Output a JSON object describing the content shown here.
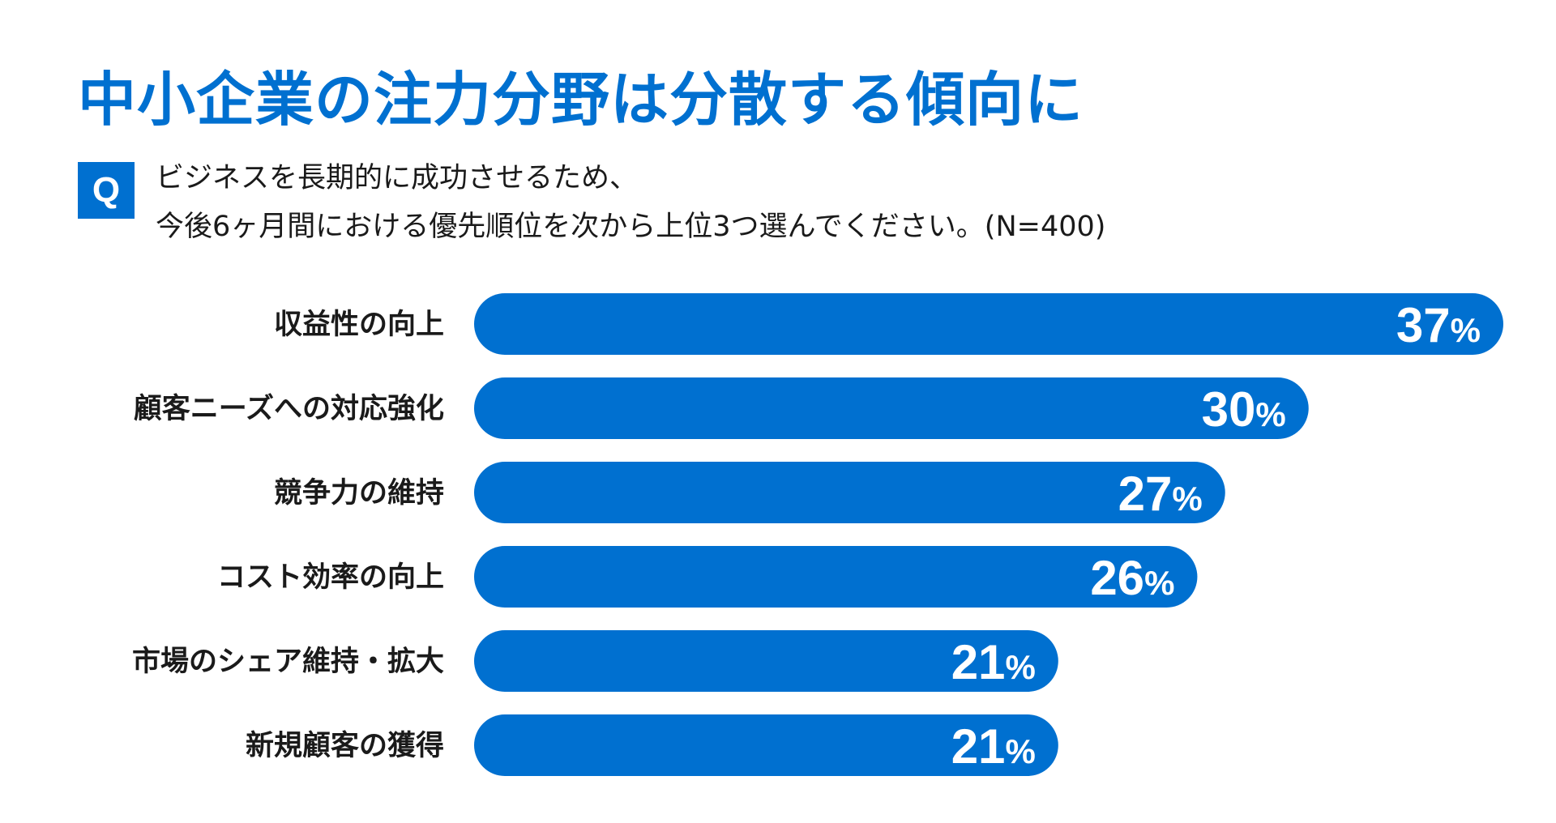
{
  "title": "中小企業の注力分野は分散する傾向に",
  "question": {
    "badge": "Q",
    "line1": "ビジネスを長期的に成功させるため、",
    "line2": "今後6ヶ月間における優先順位を次から上位3つ選んでください。(N=400)"
  },
  "colors": {
    "accent": "#0070d0",
    "bar": "#0070d0",
    "bar_text": "#ffffff"
  },
  "chart_data": {
    "type": "bar",
    "orientation": "horizontal",
    "title": "中小企業の注力分野は分散する傾向に",
    "categories": [
      "収益性の向上",
      "顧客ニーズへの対応強化",
      "競争力の維持",
      "コスト効率の向上",
      "市場のシェア維持・拡大",
      "新規顧客の獲得"
    ],
    "values": [
      37,
      30,
      27,
      26,
      21,
      21
    ],
    "unit": "%",
    "xlim": [
      0,
      37
    ]
  }
}
